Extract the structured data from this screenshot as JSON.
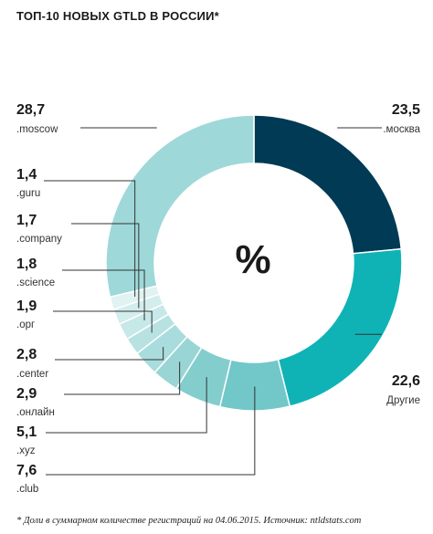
{
  "title": "ТОП-10 НОВЫХ GTLD В РОССИИ*",
  "center_symbol": "%",
  "footnote": "* Доли в суммарном количестве регистраций на 04.06.2015. Источник: ntldstats.com",
  "chart_data": {
    "type": "donut",
    "title": "ТОП-10 НОВЫХ GTLD В РОССИИ*",
    "unit": "%",
    "slices": [
      {
        "label": ".москва",
        "value": "23,5",
        "v": 23.5,
        "color": "#003a55"
      },
      {
        "label": "Другие",
        "value": "22,6",
        "v": 22.6,
        "color": "#0fb3b5"
      },
      {
        "label": ".club",
        "value": "7,6",
        "v": 7.6,
        "color": "#72c7c8"
      },
      {
        "label": ".xyz",
        "value": "5,1",
        "v": 5.1,
        "color": "#84cdcd"
      },
      {
        "label": ".онлайн",
        "value": "2,9",
        "v": 2.9,
        "color": "#99d5d5"
      },
      {
        "label": ".center",
        "value": "2,8",
        "v": 2.8,
        "color": "#a9dcdc"
      },
      {
        "label": ".орг",
        "value": "1,9",
        "v": 1.9,
        "color": "#b8e2e2"
      },
      {
        "label": ".science",
        "value": "1,8",
        "v": 1.8,
        "color": "#c6e8e8"
      },
      {
        "label": ".company",
        "value": "1,7",
        "v": 1.7,
        "color": "#d3eded"
      },
      {
        "label": ".guru",
        "value": "1,4",
        "v": 1.4,
        "color": "#e0f2f2"
      },
      {
        "label": ".moscow",
        "value": "28,7",
        "v": 28.7,
        "color": "#9fd8d8"
      }
    ]
  }
}
